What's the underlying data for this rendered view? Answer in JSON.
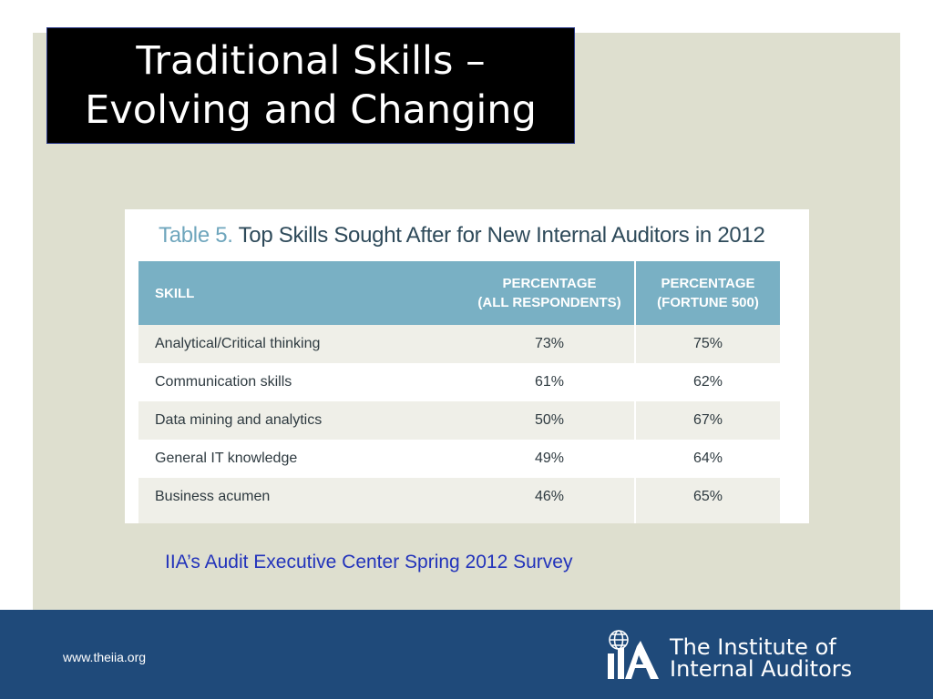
{
  "slide": {
    "title_line1": "Traditional Skills –",
    "title_line2": "Evolving and Changing",
    "source_note": "IIA’s Audit Executive Center Spring 2012 Survey"
  },
  "table": {
    "caption_label": "Table 5.",
    "caption_text": "Top Skills Sought After for New Internal Auditors in 2012",
    "headers": {
      "skill": "SKILL",
      "all_line1": "PERCENTAGE",
      "all_line2": "(ALL RESPONDENTS)",
      "f500_line1": "PERCENTAGE",
      "f500_line2": "(FORTUNE 500)"
    },
    "rows": [
      {
        "skill": "Analytical/Critical thinking",
        "all": "73%",
        "f500": "75%"
      },
      {
        "skill": "Communication skills",
        "all": "61%",
        "f500": "62%"
      },
      {
        "skill": "Data mining and analytics",
        "all": "50%",
        "f500": "67%"
      },
      {
        "skill": "General IT knowledge",
        "all": "49%",
        "f500": "64%"
      },
      {
        "skill": "Business acumen",
        "all": "46%",
        "f500": "65%"
      }
    ]
  },
  "footer": {
    "url": "www.theiia.org",
    "logo_line1": "The Institute of",
    "logo_line2": "Internal Auditors",
    "logo_mark_icon": "globe-iia-mark-icon"
  },
  "colors": {
    "panel": "#dedfcf",
    "footer": "#1f4a7a",
    "table_header": "#79b0c4",
    "source_note": "#2233bb"
  }
}
